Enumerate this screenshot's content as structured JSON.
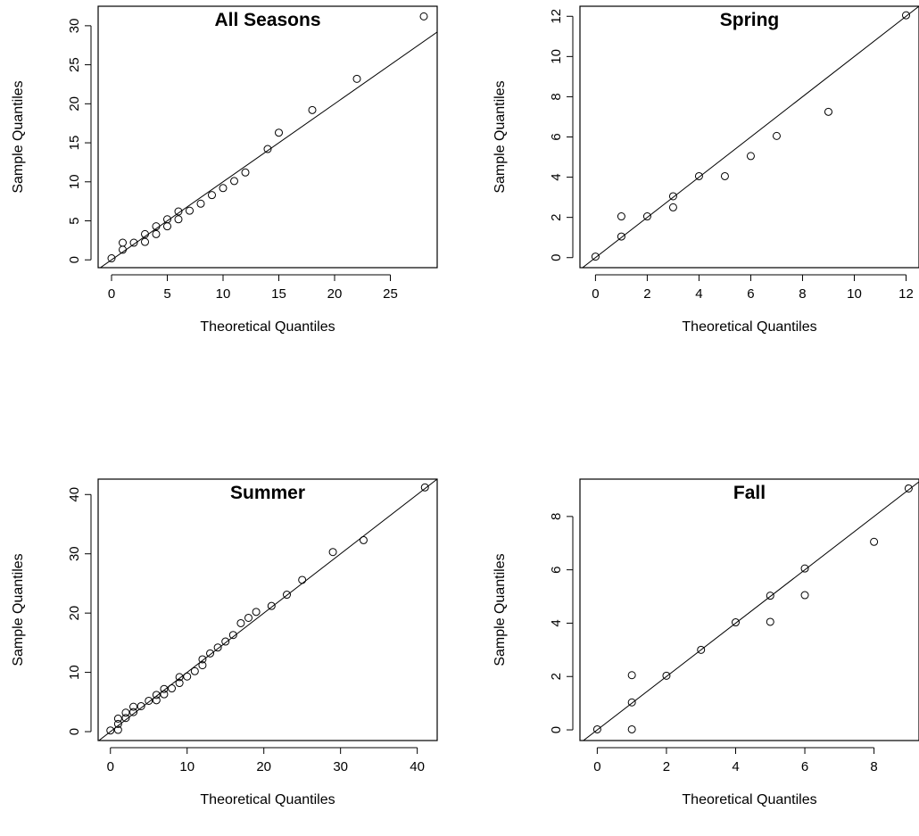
{
  "chart_data": [
    {
      "type": "scatter",
      "title": "All Seasons",
      "xlabel": "Theoretical Quantiles",
      "ylabel": "Sample Quantiles",
      "xlim": [
        -1.2,
        29.2
      ],
      "ylim": [
        -1.0,
        32.5
      ],
      "xticks": [
        0,
        5,
        10,
        15,
        20,
        25
      ],
      "yticks": [
        0,
        5,
        10,
        15,
        20,
        25,
        30
      ],
      "line": {
        "slope": 1.0,
        "intercept": 0
      },
      "points": [
        [
          0,
          0.2
        ],
        [
          1,
          1.3
        ],
        [
          1,
          2.2
        ],
        [
          2,
          2.2
        ],
        [
          3,
          2.3
        ],
        [
          3,
          3.3
        ],
        [
          4,
          3.3
        ],
        [
          4,
          4.3
        ],
        [
          5,
          4.3
        ],
        [
          5,
          5.2
        ],
        [
          6,
          5.2
        ],
        [
          6,
          6.2
        ],
        [
          7,
          6.3
        ],
        [
          8,
          7.2
        ],
        [
          9,
          8.3
        ],
        [
          10,
          9.2
        ],
        [
          11,
          10.1
        ],
        [
          12,
          11.2
        ],
        [
          14,
          14.2
        ],
        [
          15,
          16.3
        ],
        [
          18,
          19.2
        ],
        [
          22,
          23.2
        ],
        [
          28,
          31.2
        ]
      ]
    },
    {
      "type": "scatter",
      "title": "Spring",
      "xlabel": "Theoretical Quantiles",
      "ylabel": "Sample Quantiles",
      "xlim": [
        -0.6,
        12.5
      ],
      "ylim": [
        -0.5,
        12.5
      ],
      "xticks": [
        0,
        2,
        4,
        6,
        8,
        10,
        12
      ],
      "yticks": [
        0,
        2,
        4,
        6,
        8,
        10,
        12
      ],
      "line": {
        "slope": 1.0,
        "intercept": 0
      },
      "points": [
        [
          0,
          0.05
        ],
        [
          1,
          1.05
        ],
        [
          1,
          2.05
        ],
        [
          2,
          2.05
        ],
        [
          3,
          2.5
        ],
        [
          3,
          3.05
        ],
        [
          4,
          4.05
        ],
        [
          5,
          4.05
        ],
        [
          6,
          5.05
        ],
        [
          7,
          6.05
        ],
        [
          9,
          7.25
        ],
        [
          12,
          12.05
        ]
      ]
    },
    {
      "type": "scatter",
      "title": "Summer",
      "xlabel": "Theoretical Quantiles",
      "ylabel": "Sample Quantiles",
      "xlim": [
        -1.6,
        42.6
      ],
      "ylim": [
        -1.5,
        42.6
      ],
      "xticks": [
        0,
        10,
        20,
        30,
        40
      ],
      "yticks": [
        0,
        10,
        20,
        30,
        40
      ],
      "line": {
        "slope": 1.0,
        "intercept": 0
      },
      "points": [
        [
          0,
          0.2
        ],
        [
          1,
          0.3
        ],
        [
          1,
          1.3
        ],
        [
          1,
          2.2
        ],
        [
          2,
          2.3
        ],
        [
          2,
          3.2
        ],
        [
          3,
          3.3
        ],
        [
          3,
          4.2
        ],
        [
          4,
          4.3
        ],
        [
          5,
          5.2
        ],
        [
          6,
          5.3
        ],
        [
          6,
          6.2
        ],
        [
          7,
          6.3
        ],
        [
          7,
          7.2
        ],
        [
          8,
          7.3
        ],
        [
          9,
          8.2
        ],
        [
          9,
          9.2
        ],
        [
          10,
          9.3
        ],
        [
          11,
          10.2
        ],
        [
          12,
          11.2
        ],
        [
          12,
          12.2
        ],
        [
          13,
          13.2
        ],
        [
          14,
          14.2
        ],
        [
          15,
          15.2
        ],
        [
          16,
          16.3
        ],
        [
          17,
          18.3
        ],
        [
          18,
          19.2
        ],
        [
          19,
          20.2
        ],
        [
          21,
          21.2
        ],
        [
          23,
          23.1
        ],
        [
          25,
          25.6
        ],
        [
          29,
          30.3
        ],
        [
          33,
          32.3
        ],
        [
          41,
          41.2
        ]
      ]
    },
    {
      "type": "scatter",
      "title": "Fall",
      "xlabel": "Theoretical Quantiles",
      "ylabel": "Sample Quantiles",
      "xlim": [
        -0.5,
        9.3
      ],
      "ylim": [
        -0.4,
        9.4
      ],
      "xticks": [
        0,
        2,
        4,
        6,
        8
      ],
      "yticks": [
        0,
        2,
        4,
        6,
        8
      ],
      "line": {
        "slope": 1.0,
        "intercept": 0
      },
      "points": [
        [
          0,
          0.02
        ],
        [
          1,
          0.02
        ],
        [
          1,
          1.03
        ],
        [
          1,
          2.05
        ],
        [
          2,
          2.03
        ],
        [
          3,
          3.0
        ],
        [
          4,
          4.03
        ],
        [
          5,
          4.05
        ],
        [
          5,
          5.03
        ],
        [
          6,
          5.05
        ],
        [
          6,
          6.05
        ],
        [
          8,
          7.05
        ],
        [
          9,
          9.05
        ]
      ]
    }
  ]
}
